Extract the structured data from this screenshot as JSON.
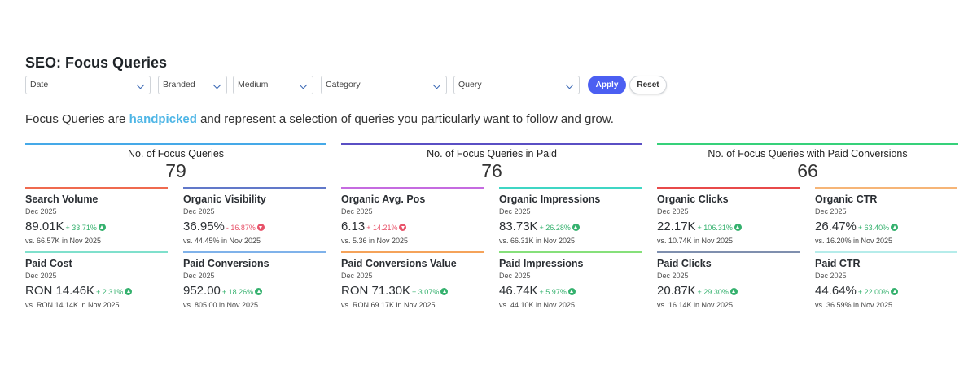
{
  "page": {
    "title": "SEO: Focus Queries"
  },
  "filters": {
    "date": "Date",
    "branded": "Branded",
    "medium": "Medium",
    "category": "Category",
    "query": "Query",
    "apply_label": "Apply",
    "reset_label": "Reset"
  },
  "intro": {
    "before": "Focus Queries are ",
    "highlight": "handpicked",
    "after": " and represent a selection of queries you particularly want to follow and grow."
  },
  "groups": [
    {
      "title": "No. of Focus Queries",
      "value": "79",
      "color": "#45a9e8"
    },
    {
      "title": "No. of Focus Queries in Paid",
      "value": "76",
      "color": "#5a4fc4"
    },
    {
      "title": "No. of Focus Queries with Paid Conversions",
      "value": "66",
      "color": "#36d17a"
    }
  ],
  "cards": [
    {
      "name": "Search Volume",
      "date": "Dec 2025",
      "value": "89.01K",
      "delta": "+ 33.71%",
      "direction": "up",
      "compare": "vs. 66.57K in Nov 2025",
      "color": "#ef6a4f"
    },
    {
      "name": "Organic Visibility",
      "date": "Dec 2025",
      "value": "36.95%",
      "delta": "- 16.87%",
      "direction": "down",
      "compare": "vs. 44.45% in Nov 2025",
      "color": "#6178c9"
    },
    {
      "name": "Organic Avg. Pos",
      "date": "Dec 2025",
      "value": "6.13",
      "delta": "+ 14.21%",
      "direction": "down",
      "compare": "vs. 5.36 in Nov 2025",
      "color": "#c56be0"
    },
    {
      "name": "Organic Impressions",
      "date": "Dec 2025",
      "value": "83.73K",
      "delta": "+ 26.28%",
      "direction": "up",
      "compare": "vs. 66.31K in Nov 2025",
      "color": "#3fd6c4"
    },
    {
      "name": "Organic Clicks",
      "date": "Dec 2025",
      "value": "22.17K",
      "delta": "+ 106.31%",
      "direction": "up",
      "compare": "vs. 10.74K in Nov 2025",
      "color": "#e84a4a"
    },
    {
      "name": "Organic CTR",
      "date": "Dec 2025",
      "value": "26.47%",
      "delta": "+ 63.40%",
      "direction": "up",
      "compare": "vs. 16.20% in Nov 2025",
      "color": "#f6b577"
    },
    {
      "name": "Paid Cost",
      "date": "Dec 2025",
      "value": "RON 14.46K",
      "delta": "+ 2.31%",
      "direction": "up",
      "compare": "vs. RON 14.14K in Nov 2025",
      "color": "#7fe0cc"
    },
    {
      "name": "Paid Conversions",
      "date": "Dec 2025",
      "value": "952.00",
      "delta": "+ 18.26%",
      "direction": "up",
      "compare": "vs. 805.00 in Nov 2025",
      "color": "#7fb2ea"
    },
    {
      "name": "Paid Conversions Value",
      "date": "Dec 2025",
      "value": "RON 71.30K",
      "delta": "+ 3.07%",
      "direction": "up",
      "compare": "vs. RON 69.17K in Nov 2025",
      "color": "#f5a35a"
    },
    {
      "name": "Paid Impressions",
      "date": "Dec 2025",
      "value": "46.74K",
      "delta": "+ 5.97%",
      "direction": "up",
      "compare": "vs. 44.10K in Nov 2025",
      "color": "#86e07a"
    },
    {
      "name": "Paid Clicks",
      "date": "Dec 2025",
      "value": "20.87K",
      "delta": "+ 29.30%",
      "direction": "up",
      "compare": "vs. 16.14K in Nov 2025",
      "color": "#7f8fae"
    },
    {
      "name": "Paid CTR",
      "date": "Dec 2025",
      "value": "44.64%",
      "delta": "+ 22.00%",
      "direction": "up",
      "compare": "vs. 36.59% in Nov 2025",
      "color": "#b5ecea"
    }
  ]
}
